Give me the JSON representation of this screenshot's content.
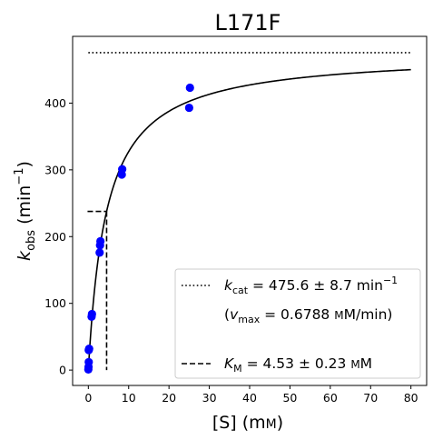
{
  "chart_data": {
    "type": "scatter",
    "title": "L171F",
    "xlabel": "[S] (mM)",
    "ylabel": "k_obs (min^-1)",
    "xlim": [
      -3.9,
      83.9
    ],
    "ylim": [
      -23,
      500
    ],
    "xticks": [
      0,
      10,
      20,
      30,
      40,
      50,
      60,
      70,
      80
    ],
    "yticks": [
      0,
      100,
      200,
      300,
      400
    ],
    "grid": false,
    "legend_position": "lower-right",
    "points": {
      "color": "#0000ff",
      "x": [
        0,
        0.05,
        0.1,
        0.1,
        0.2,
        0.8,
        0.9,
        2.8,
        2.9,
        3.0,
        8.3,
        8.4,
        25,
        25.2
      ],
      "y": [
        1,
        5,
        12,
        30,
        32,
        80,
        84,
        176,
        187,
        193,
        293,
        301,
        393,
        423
      ]
    },
    "fit_curve": {
      "model": "michaelis-menten",
      "kcat": 475.6,
      "KM": 4.53,
      "x_range": [
        0,
        80
      ],
      "color": "#000000",
      "style": "solid"
    },
    "kcat_line": {
      "y": 475.6,
      "x_range": [
        0,
        80
      ],
      "style": "dotted"
    },
    "KM_line": {
      "x": 4.53,
      "y": 237.8,
      "x_start": -0.2,
      "style": "dashed"
    },
    "legend": [
      {
        "style": "dotted",
        "sym": "k",
        "sub": "cat",
        "text": " = 475.6 ± 8.7 min",
        "sup": "−1"
      },
      {
        "style": "none",
        "pre": "(v",
        "sub": "max",
        "text": " = 0.6788 mM/min)"
      },
      {
        "style": "dashed",
        "sym": "K",
        "sub": "M",
        "text": " = 4.53 ± 0.23 mM"
      }
    ]
  }
}
